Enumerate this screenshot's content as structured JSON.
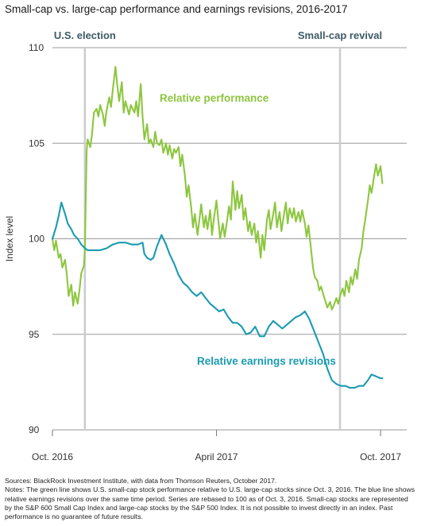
{
  "title": "Small-cap vs. large-cap performance and earnings revisions, 2016-2017",
  "sources": "Sources: BlackRock Investment Institute, with data from Thomson Reuters, October 2017.",
  "notes": "Notes: The green line shows U.S. small-cap stock performance relative to U.S. large-cap stocks since Oct. 3, 2016. The blue line shows relative earnings revisions over the same time period. Series are rebased to 100 as of Oct. 3, 2016. Small-cap stocks are represented by the S&P 600 Small Cap Index and large-cap stocks by the S&P 500 Index. It is not possible to invest directly in an index. Past performance is no guarantee of future results.",
  "colors": {
    "relative_performance": "#8dc63f",
    "earnings_revisions": "#1a9bb0",
    "event_line": "#c9ccd0",
    "grid": "#9a9a9a",
    "event_label": "#3d5a66"
  },
  "chart_data": {
    "type": "line",
    "xlim": [
      "2016-10-03",
      "2017-10-31"
    ],
    "ylim": [
      90,
      110
    ],
    "yticks": [
      90,
      95,
      100,
      105,
      110
    ],
    "ylabel": "Index level",
    "xlabel": "",
    "grid": true,
    "xtick_labels": [
      {
        "label": "Oct. 2016",
        "date": "2016-10-03"
      },
      {
        "label": "April 2017",
        "date": "2017-04-03"
      },
      {
        "label": "Oct. 2017",
        "date": "2017-10-02"
      }
    ],
    "events": [
      {
        "label": "U.S. election",
        "date": "2016-11-08"
      },
      {
        "label": "Small-cap revival",
        "date": "2017-08-18"
      }
    ],
    "annotations": [
      {
        "text": "Relative performance",
        "series": "relative_performance"
      },
      {
        "text": "Relative earnings revisions",
        "series": "earnings_revisions"
      }
    ],
    "series": [
      {
        "key": "relative_performance",
        "name": "Relative performance",
        "points": [
          [
            "2016-10-03",
            100.0
          ],
          [
            "2016-10-05",
            99.4
          ],
          [
            "2016-10-07",
            99.9
          ],
          [
            "2016-10-10",
            99.0
          ],
          [
            "2016-10-12",
            99.2
          ],
          [
            "2016-10-14",
            98.5
          ],
          [
            "2016-10-17",
            98.9
          ],
          [
            "2016-10-19",
            98.1
          ],
          [
            "2016-10-21",
            97.0
          ],
          [
            "2016-10-24",
            97.6
          ],
          [
            "2016-10-26",
            96.5
          ],
          [
            "2016-10-28",
            97.2
          ],
          [
            "2016-10-31",
            96.6
          ],
          [
            "2016-11-02",
            97.3
          ],
          [
            "2016-11-04",
            98.2
          ],
          [
            "2016-11-07",
            98.6
          ],
          [
            "2016-11-08",
            99.5
          ],
          [
            "2016-11-09",
            102.2
          ],
          [
            "2016-11-10",
            104.6
          ],
          [
            "2016-11-11",
            105.2
          ],
          [
            "2016-11-14",
            104.8
          ],
          [
            "2016-11-16",
            105.5
          ],
          [
            "2016-11-18",
            106.6
          ],
          [
            "2016-11-21",
            106.8
          ],
          [
            "2016-11-23",
            106.4
          ],
          [
            "2016-11-25",
            107.0
          ],
          [
            "2016-11-28",
            106.5
          ],
          [
            "2016-11-30",
            105.9
          ],
          [
            "2016-12-02",
            106.7
          ],
          [
            "2016-12-05",
            107.4
          ],
          [
            "2016-12-07",
            106.9
          ],
          [
            "2016-12-09",
            107.8
          ],
          [
            "2016-12-12",
            109.0
          ],
          [
            "2016-12-14",
            108.0
          ],
          [
            "2016-12-16",
            107.2
          ],
          [
            "2016-12-19",
            108.2
          ],
          [
            "2016-12-21",
            106.6
          ],
          [
            "2016-12-23",
            107.2
          ],
          [
            "2016-12-27",
            106.5
          ],
          [
            "2016-12-29",
            107.0
          ],
          [
            "2017-01-02",
            106.6
          ],
          [
            "2017-01-04",
            107.2
          ],
          [
            "2017-01-06",
            106.4
          ],
          [
            "2017-01-09",
            108.1
          ],
          [
            "2017-01-11",
            106.4
          ],
          [
            "2017-01-13",
            105.2
          ],
          [
            "2017-01-16",
            106.0
          ],
          [
            "2017-01-18",
            105.0
          ],
          [
            "2017-01-20",
            105.2
          ],
          [
            "2017-01-23",
            104.8
          ],
          [
            "2017-01-25",
            105.6
          ],
          [
            "2017-01-27",
            105.0
          ],
          [
            "2017-01-30",
            104.9
          ],
          [
            "2017-02-01",
            105.2
          ],
          [
            "2017-02-03",
            104.5
          ],
          [
            "2017-02-06",
            105.0
          ],
          [
            "2017-02-08",
            104.4
          ],
          [
            "2017-02-10",
            104.9
          ],
          [
            "2017-02-13",
            104.2
          ],
          [
            "2017-02-15",
            104.7
          ],
          [
            "2017-02-17",
            104.5
          ],
          [
            "2017-02-20",
            104.8
          ],
          [
            "2017-02-22",
            103.8
          ],
          [
            "2017-02-24",
            104.4
          ],
          [
            "2017-02-27",
            103.3
          ],
          [
            "2017-03-01",
            102.2
          ],
          [
            "2017-03-03",
            102.8
          ],
          [
            "2017-03-06",
            101.6
          ],
          [
            "2017-03-08",
            100.6
          ],
          [
            "2017-03-10",
            101.3
          ],
          [
            "2017-03-13",
            100.2
          ],
          [
            "2017-03-15",
            101.0
          ],
          [
            "2017-03-17",
            101.8
          ],
          [
            "2017-03-20",
            100.6
          ],
          [
            "2017-03-22",
            101.2
          ],
          [
            "2017-03-24",
            100.5
          ],
          [
            "2017-03-27",
            101.5
          ],
          [
            "2017-03-29",
            100.2
          ],
          [
            "2017-03-31",
            101.0
          ],
          [
            "2017-04-03",
            102.0
          ],
          [
            "2017-04-05",
            101.0
          ],
          [
            "2017-04-07",
            100.0
          ],
          [
            "2017-04-10",
            100.8
          ],
          [
            "2017-04-12",
            100.1
          ],
          [
            "2017-04-14",
            100.7
          ],
          [
            "2017-04-17",
            101.7
          ],
          [
            "2017-04-19",
            101.0
          ],
          [
            "2017-04-21",
            103.0
          ],
          [
            "2017-04-24",
            101.5
          ],
          [
            "2017-04-26",
            102.5
          ],
          [
            "2017-04-28",
            101.6
          ],
          [
            "2017-05-01",
            102.3
          ],
          [
            "2017-05-03",
            101.0
          ],
          [
            "2017-05-05",
            101.6
          ],
          [
            "2017-05-08",
            100.4
          ],
          [
            "2017-05-10",
            100.9
          ],
          [
            "2017-05-12",
            100.2
          ],
          [
            "2017-05-15",
            100.8
          ],
          [
            "2017-05-17",
            99.8
          ],
          [
            "2017-05-19",
            100.4
          ],
          [
            "2017-05-22",
            99.0
          ],
          [
            "2017-05-24",
            100.2
          ],
          [
            "2017-05-26",
            99.4
          ],
          [
            "2017-05-29",
            101.0
          ],
          [
            "2017-05-31",
            101.5
          ],
          [
            "2017-06-02",
            100.5
          ],
          [
            "2017-06-05",
            101.3
          ],
          [
            "2017-06-07",
            101.9
          ],
          [
            "2017-06-09",
            100.6
          ],
          [
            "2017-06-12",
            101.4
          ],
          [
            "2017-06-14",
            100.4
          ],
          [
            "2017-06-16",
            101.0
          ],
          [
            "2017-06-19",
            101.9
          ],
          [
            "2017-06-21",
            100.8
          ],
          [
            "2017-06-23",
            101.6
          ],
          [
            "2017-06-26",
            101.1
          ],
          [
            "2017-06-28",
            101.6
          ],
          [
            "2017-06-30",
            100.9
          ],
          [
            "2017-07-03",
            101.4
          ],
          [
            "2017-07-05",
            100.9
          ],
          [
            "2017-07-07",
            101.5
          ],
          [
            "2017-07-10",
            100.8
          ],
          [
            "2017-07-12",
            100.1
          ],
          [
            "2017-07-14",
            100.7
          ],
          [
            "2017-07-17",
            99.4
          ],
          [
            "2017-07-19",
            98.5
          ],
          [
            "2017-07-21",
            98.0
          ],
          [
            "2017-07-24",
            97.8
          ],
          [
            "2017-07-26",
            97.3
          ],
          [
            "2017-07-28",
            97.5
          ],
          [
            "2017-07-31",
            97.0
          ],
          [
            "2017-08-02",
            96.7
          ],
          [
            "2017-08-04",
            96.4
          ],
          [
            "2017-08-07",
            96.7
          ],
          [
            "2017-08-09",
            96.3
          ],
          [
            "2017-08-11",
            96.5
          ],
          [
            "2017-08-14",
            96.9
          ],
          [
            "2017-08-16",
            96.6
          ],
          [
            "2017-08-18",
            97.0
          ],
          [
            "2017-08-21",
            97.4
          ],
          [
            "2017-08-23",
            97.0
          ],
          [
            "2017-08-25",
            97.8
          ],
          [
            "2017-08-28",
            97.2
          ],
          [
            "2017-08-30",
            98.0
          ],
          [
            "2017-09-01",
            97.6
          ],
          [
            "2017-09-04",
            98.4
          ],
          [
            "2017-09-06",
            97.9
          ],
          [
            "2017-09-08",
            98.9
          ],
          [
            "2017-09-11",
            99.5
          ],
          [
            "2017-09-13",
            100.4
          ],
          [
            "2017-09-15",
            101.0
          ],
          [
            "2017-09-18",
            102.0
          ],
          [
            "2017-09-20",
            102.8
          ],
          [
            "2017-09-22",
            102.4
          ],
          [
            "2017-09-25",
            103.3
          ],
          [
            "2017-09-27",
            103.9
          ],
          [
            "2017-09-29",
            103.3
          ],
          [
            "2017-10-02",
            103.8
          ],
          [
            "2017-10-04",
            102.9
          ]
        ]
      },
      {
        "key": "earnings_revisions",
        "name": "Relative earnings revisions",
        "points": [
          [
            "2016-10-03",
            100.0
          ],
          [
            "2016-10-07",
            100.6
          ],
          [
            "2016-10-10",
            101.2
          ],
          [
            "2016-10-13",
            101.9
          ],
          [
            "2016-10-17",
            101.3
          ],
          [
            "2016-10-20",
            100.8
          ],
          [
            "2016-10-24",
            100.5
          ],
          [
            "2016-10-27",
            100.2
          ],
          [
            "2016-10-31",
            100.0
          ],
          [
            "2016-11-04",
            99.7
          ],
          [
            "2016-11-08",
            99.5
          ],
          [
            "2016-11-11",
            99.4
          ],
          [
            "2016-11-18",
            99.4
          ],
          [
            "2016-11-25",
            99.4
          ],
          [
            "2016-12-02",
            99.5
          ],
          [
            "2016-12-09",
            99.7
          ],
          [
            "2016-12-16",
            99.8
          ],
          [
            "2016-12-23",
            99.8
          ],
          [
            "2016-12-30",
            99.7
          ],
          [
            "2017-01-06",
            99.7
          ],
          [
            "2017-01-11",
            99.8
          ],
          [
            "2017-01-13",
            99.2
          ],
          [
            "2017-01-16",
            99.0
          ],
          [
            "2017-01-20",
            98.9
          ],
          [
            "2017-01-23",
            99.0
          ],
          [
            "2017-01-27",
            99.6
          ],
          [
            "2017-02-01",
            100.2
          ],
          [
            "2017-02-06",
            99.7
          ],
          [
            "2017-02-10",
            99.2
          ],
          [
            "2017-02-15",
            98.7
          ],
          [
            "2017-02-20",
            98.1
          ],
          [
            "2017-02-25",
            97.7
          ],
          [
            "2017-03-02",
            97.5
          ],
          [
            "2017-03-07",
            97.2
          ],
          [
            "2017-03-12",
            97.0
          ],
          [
            "2017-03-17",
            97.2
          ],
          [
            "2017-03-22",
            96.9
          ],
          [
            "2017-03-27",
            96.6
          ],
          [
            "2017-04-01",
            96.4
          ],
          [
            "2017-04-06",
            96.2
          ],
          [
            "2017-04-11",
            96.3
          ],
          [
            "2017-04-16",
            95.9
          ],
          [
            "2017-04-21",
            95.6
          ],
          [
            "2017-04-26",
            95.6
          ],
          [
            "2017-05-01",
            95.4
          ],
          [
            "2017-05-06",
            95.0
          ],
          [
            "2017-05-11",
            95.1
          ],
          [
            "2017-05-16",
            95.4
          ],
          [
            "2017-05-21",
            94.9
          ],
          [
            "2017-05-26",
            94.9
          ],
          [
            "2017-05-31",
            95.4
          ],
          [
            "2017-06-05",
            95.7
          ],
          [
            "2017-06-10",
            95.5
          ],
          [
            "2017-06-15",
            95.3
          ],
          [
            "2017-06-20",
            95.5
          ],
          [
            "2017-06-25",
            95.7
          ],
          [
            "2017-06-30",
            95.9
          ],
          [
            "2017-07-05",
            96.0
          ],
          [
            "2017-07-10",
            96.2
          ],
          [
            "2017-07-15",
            95.8
          ],
          [
            "2017-07-20",
            95.2
          ],
          [
            "2017-07-25",
            94.6
          ],
          [
            "2017-07-30",
            94.0
          ],
          [
            "2017-08-04",
            93.2
          ],
          [
            "2017-08-09",
            92.6
          ],
          [
            "2017-08-14",
            92.4
          ],
          [
            "2017-08-19",
            92.3
          ],
          [
            "2017-08-24",
            92.3
          ],
          [
            "2017-08-29",
            92.2
          ],
          [
            "2017-09-03",
            92.2
          ],
          [
            "2017-09-08",
            92.3
          ],
          [
            "2017-09-13",
            92.3
          ],
          [
            "2017-09-18",
            92.6
          ],
          [
            "2017-09-22",
            92.9
          ],
          [
            "2017-09-27",
            92.8
          ],
          [
            "2017-10-02",
            92.7
          ],
          [
            "2017-10-04",
            92.7
          ]
        ]
      }
    ]
  }
}
